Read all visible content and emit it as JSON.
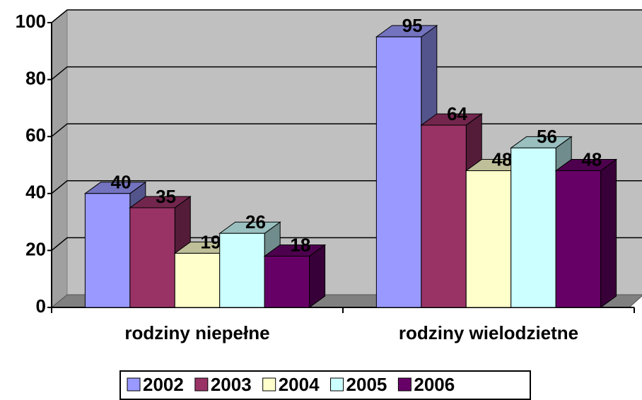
{
  "chart_data": {
    "type": "bar3d",
    "categories": [
      "rodziny niepełne",
      "rodziny wielodzietne"
    ],
    "series": [
      {
        "name": "2002",
        "color": "#9999ff",
        "values": [
          40,
          95
        ]
      },
      {
        "name": "2003",
        "color": "#993366",
        "values": [
          35,
          64
        ]
      },
      {
        "name": "2004",
        "color": "#ffffcc",
        "values": [
          19,
          48
        ]
      },
      {
        "name": "2005",
        "color": "#ccffff",
        "values": [
          26,
          56
        ]
      },
      {
        "name": "2006",
        "color": "#660066",
        "values": [
          18,
          48
        ]
      }
    ],
    "ylim": [
      0,
      100
    ],
    "yticks": [
      0,
      20,
      40,
      60,
      80,
      100
    ],
    "grid": true,
    "legend": "bottom"
  }
}
